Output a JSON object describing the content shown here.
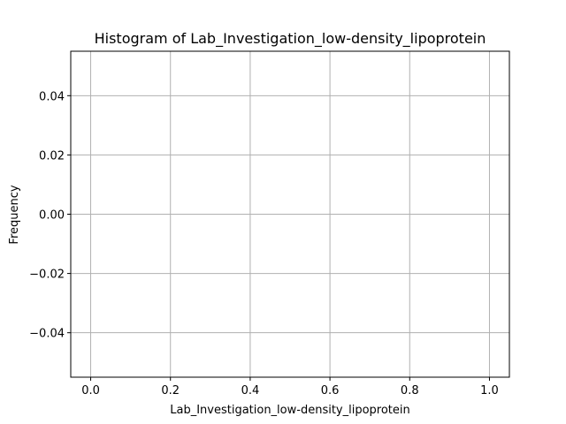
{
  "chart_data": {
    "type": "bar",
    "title": "Histogram of Lab_Investigation_low-density_lipoprotein",
    "xlabel": "Lab_Investigation_low-density_lipoprotein",
    "ylabel": "Frequency",
    "xlim": [
      -0.05,
      1.05
    ],
    "ylim": [
      -0.055,
      0.055
    ],
    "x_ticks": [
      0.0,
      0.2,
      0.4,
      0.6,
      0.8,
      1.0
    ],
    "x_tick_labels": [
      "0.0",
      "0.2",
      "0.4",
      "0.6",
      "0.8",
      "1.0"
    ],
    "y_ticks": [
      -0.04,
      -0.02,
      0.0,
      0.02,
      0.04
    ],
    "y_tick_labels": [
      "−0.04",
      "−0.02",
      "0.00",
      "0.02",
      "0.04"
    ],
    "bins": [],
    "values": [],
    "grid": true,
    "colors": {
      "grid": "#b0b0b0",
      "axes": "#000000",
      "background": "#ffffff"
    }
  }
}
